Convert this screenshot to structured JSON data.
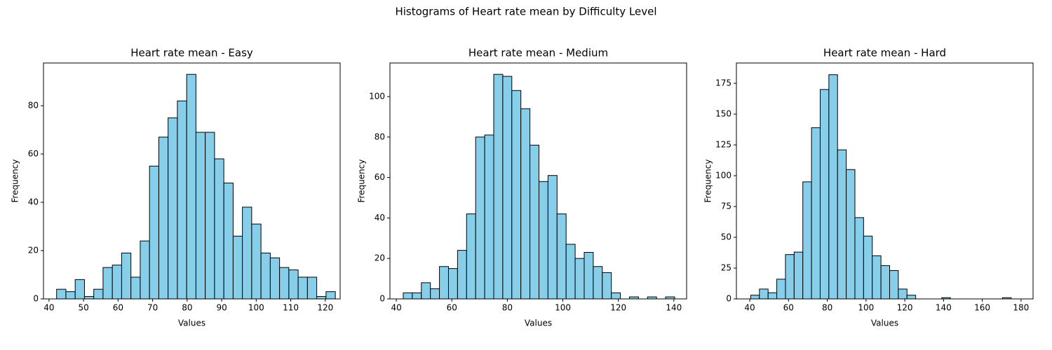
{
  "title": "Histograms of Heart rate mean by Difficulty Level",
  "chart_data": [
    {
      "type": "histogram",
      "title": "Heart rate mean - Easy",
      "xlabel": "Values",
      "ylabel": "Frequency",
      "color": "#87ceeb",
      "edgecolor": "#000000",
      "bins": [
        42.2,
        44.89,
        47.58,
        50.27,
        52.96,
        55.65,
        58.34,
        61.03,
        63.72,
        66.41,
        69.1,
        71.79,
        74.48,
        77.17,
        79.86,
        82.55,
        85.24,
        87.93,
        90.62,
        93.31,
        96.0,
        98.69,
        101.38,
        104.07,
        106.76,
        109.45,
        112.14,
        114.83,
        117.52,
        120.21,
        122.9
      ],
      "counts": [
        4,
        3,
        8,
        1,
        4,
        13,
        14,
        19,
        9,
        24,
        55,
        67,
        75,
        82,
        93,
        69,
        69,
        58,
        48,
        26,
        38,
        31,
        19,
        17,
        13,
        12,
        9,
        9,
        1,
        3
      ],
      "xlim": [
        38.4,
        124.3
      ],
      "xticks": [
        40,
        50,
        60,
        70,
        80,
        90,
        100,
        110,
        120
      ],
      "ylim": [
        0,
        97.7
      ],
      "yticks": [
        0,
        20,
        40,
        60,
        80
      ]
    },
    {
      "type": "histogram",
      "title": "Heart rate mean - Medium",
      "xlabel": "Values",
      "ylabel": "Frequency",
      "color": "#87ceeb",
      "edgecolor": "#000000",
      "bins": [
        42.5,
        45.76,
        49.02,
        52.28,
        55.54,
        58.8,
        62.06,
        65.32,
        68.58,
        71.84,
        75.1,
        78.36,
        81.62,
        84.88,
        88.14,
        91.4,
        94.66,
        97.92,
        101.18,
        104.44,
        107.7,
        110.96,
        114.22,
        117.48,
        120.74,
        124.0,
        127.26,
        130.52,
        133.78,
        137.04,
        140.3
      ],
      "counts": [
        3,
        3,
        8,
        5,
        16,
        15,
        24,
        42,
        80,
        81,
        111,
        110,
        103,
        94,
        76,
        58,
        61,
        42,
        27,
        20,
        23,
        16,
        13,
        3,
        0,
        1,
        0,
        1,
        0,
        1
      ],
      "xlim": [
        37.7,
        144.6
      ],
      "xticks": [
        40,
        60,
        80,
        100,
        120,
        140
      ],
      "ylim": [
        0,
        116.6
      ],
      "yticks": [
        0,
        20,
        40,
        60,
        80,
        100
      ]
    },
    {
      "type": "histogram",
      "title": "Heart rate mean - Hard",
      "xlabel": "Values",
      "ylabel": "Frequency",
      "color": "#87ceeb",
      "edgecolor": "#000000",
      "bins": [
        40.5,
        44.98,
        49.46,
        53.94,
        58.42,
        62.9,
        67.38,
        71.86,
        76.34,
        80.82,
        85.3,
        89.78,
        94.26,
        98.74,
        103.22,
        107.7,
        112.18,
        116.66,
        121.14,
        125.62,
        130.1,
        134.58,
        139.06,
        143.54,
        148.02,
        152.5,
        156.98,
        161.46,
        165.94,
        170.42,
        174.9
      ],
      "counts": [
        3,
        8,
        5,
        16,
        36,
        38,
        95,
        139,
        170,
        182,
        121,
        105,
        66,
        51,
        35,
        27,
        23,
        8,
        3,
        0,
        0,
        0,
        1,
        0,
        0,
        0,
        0,
        0,
        0,
        1
      ],
      "xlim": [
        33.1,
        186.2
      ],
      "xticks": [
        40,
        60,
        80,
        100,
        120,
        140,
        160,
        180
      ],
      "ylim": [
        0,
        191.5
      ],
      "yticks": [
        0,
        25,
        50,
        75,
        100,
        125,
        150,
        175
      ]
    }
  ]
}
